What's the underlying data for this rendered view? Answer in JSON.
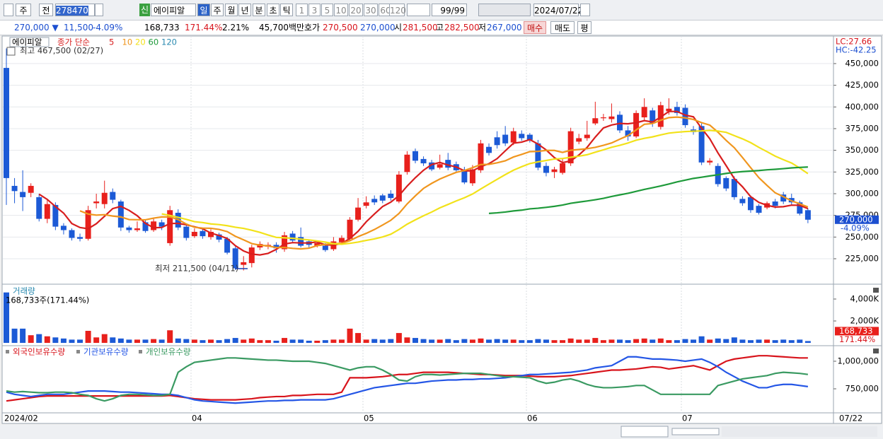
{
  "toolbar": {
    "period": "주",
    "prev": "전",
    "code": "278470",
    "credit": "신",
    "name": "에이피알",
    "intervals": [
      "일",
      "주",
      "월",
      "년",
      "분",
      "초",
      "틱"
    ],
    "counts": [
      "1",
      "3",
      "5",
      "10",
      "20",
      "30",
      "60",
      "120"
    ],
    "range": "99/99",
    "date": "2024/07/22"
  },
  "quote": {
    "price": "270,000 ▼",
    "change": "11,500",
    "change_pct": "-4.09%",
    "volume": "168,733",
    "volume_ratio": "171.44%",
    "turnover": "2.21%",
    "amount": "45,700백만",
    "ask_label": "호가",
    "ask": "270,500",
    "bid": "270,000",
    "open_label": "시",
    "open": "281,500",
    "high_label": "고",
    "high": "282,500",
    "low_label": "저",
    "low": "267,000",
    "buy": "매수",
    "sell": "매도",
    "eval": "평"
  },
  "x_axis": {
    "labels": [
      "2024/02",
      "04",
      "05",
      "06",
      "07"
    ],
    "last": "07/22"
  },
  "chart_data": [
    {
      "type": "candlestick",
      "name": "에이피알",
      "ma_label": "종가 단순",
      "ma": [
        {
          "name": "5",
          "color": "#d81e1e"
        },
        {
          "name": "10",
          "color": "#f0961e"
        },
        {
          "name": "20",
          "color": "#f2e21a"
        },
        {
          "name": "60",
          "color": "#1e9a3a"
        },
        {
          "name": "120",
          "color": "#2a8ab0"
        }
      ],
      "high_note": "최고 467,500 (02/27)",
      "low_note": "최저 211,500 (04/11)",
      "lc": "LC:27.66",
      "hc": "HC:-42.25",
      "current": "270,000",
      "current_pct": "-4.09%",
      "up_color": "#e8201c",
      "down_color": "#1c5ad6",
      "open": [
        445000,
        309000,
        302000,
        301000,
        296000,
        271000,
        287000,
        263000,
        258000,
        250000,
        248000,
        289000,
        288000,
        302000,
        291000,
        261000,
        258000,
        267000,
        258000,
        267000,
        243000,
        278000,
        262000,
        251000,
        257000,
        250000,
        253000,
        248000,
        237000,
        218000,
        220000,
        238000,
        239000,
        241000,
        236000,
        254000,
        250000,
        245000,
        240000,
        240000,
        236000,
        244000,
        248000,
        270000,
        286000,
        294000,
        298000,
        300000,
        291000,
        325000,
        349000,
        340000,
        336000,
        330000,
        339000,
        334000,
        328000,
        312000,
        327000,
        354000,
        365000,
        368000,
        359000,
        369000,
        368000,
        358000,
        332000,
        325000,
        324000,
        335000,
        360000,
        364000,
        381000,
        387000,
        386000,
        391000,
        373000,
        366000,
        388000,
        396000,
        377000,
        395000,
        400000,
        399000,
        374000,
        378000,
        336000,
        332000,
        318000,
        317000,
        294000,
        296000,
        286000,
        284000,
        291000,
        299000,
        295000,
        290000,
        281000
      ],
      "high": [
        467500,
        318000,
        327000,
        312000,
        300000,
        293000,
        290000,
        266000,
        260000,
        254000,
        286000,
        300000,
        315000,
        306000,
        293000,
        263000,
        268000,
        270000,
        272000,
        270000,
        286000,
        282000,
        265000,
        260000,
        260000,
        259000,
        255000,
        250000,
        239000,
        228000,
        241000,
        245000,
        244000,
        244000,
        256000,
        257000,
        261000,
        247000,
        246000,
        243000,
        250000,
        252000,
        273000,
        295000,
        297000,
        298000,
        300000,
        304000,
        326000,
        349000,
        352000,
        343000,
        339000,
        345000,
        347000,
        337000,
        331000,
        333000,
        362000,
        358000,
        372000,
        378000,
        376000,
        373000,
        370000,
        362000,
        336000,
        331000,
        341000,
        376000,
        369000,
        384000,
        406000,
        392000,
        404000,
        395000,
        378000,
        396000,
        410000,
        399000,
        406000,
        410000,
        406000,
        403000,
        378000,
        381000,
        341000,
        335000,
        320000,
        320000,
        297000,
        298000,
        288000,
        291000,
        294000,
        302000,
        300000,
        292000,
        283000
      ],
      "low": [
        287000,
        289000,
        280000,
        296000,
        268000,
        266000,
        258000,
        253000,
        246000,
        245000,
        246000,
        283000,
        283000,
        289000,
        257000,
        255000,
        256000,
        255000,
        256000,
        258000,
        240000,
        258000,
        246000,
        249000,
        248000,
        247000,
        244000,
        230000,
        212000,
        211500,
        215000,
        235000,
        236000,
        232000,
        233000,
        243000,
        238000,
        238000,
        238000,
        233000,
        234000,
        242000,
        246000,
        268000,
        283000,
        287000,
        289000,
        292000,
        289000,
        322000,
        335000,
        332000,
        326000,
        328000,
        327000,
        325000,
        311000,
        309000,
        324000,
        344000,
        352000,
        355000,
        356000,
        361000,
        359000,
        327000,
        320000,
        318000,
        322000,
        332000,
        357000,
        361000,
        379000,
        384000,
        382000,
        370000,
        361000,
        364000,
        385000,
        377000,
        374000,
        391000,
        390000,
        376000,
        368000,
        333000,
        333000,
        308000,
        303000,
        293000,
        286000,
        278000,
        276000,
        282000,
        283000,
        288000,
        287000,
        275000,
        266000
      ],
      "close": [
        318000,
        303000,
        296000,
        309000,
        271000,
        288000,
        262000,
        258000,
        249000,
        248000,
        281000,
        291000,
        301000,
        293000,
        261000,
        258000,
        260000,
        257000,
        268000,
        262000,
        281000,
        261000,
        249000,
        256000,
        251000,
        256000,
        247000,
        232000,
        214000,
        221000,
        238000,
        242000,
        241000,
        237000,
        252000,
        246000,
        240000,
        241000,
        243000,
        235000,
        245000,
        249000,
        270000,
        284000,
        290000,
        290000,
        292000,
        295000,
        322000,
        345000,
        338000,
        335000,
        328000,
        334000,
        330000,
        327000,
        313000,
        328000,
        358000,
        347000,
        356000,
        358000,
        372000,
        364000,
        362000,
        330000,
        324000,
        328000,
        335000,
        372000,
        364000,
        368000,
        387000,
        388000,
        389000,
        373000,
        366000,
        393000,
        400000,
        381000,
        402000,
        398000,
        393000,
        379000,
        371000,
        336000,
        338000,
        311000,
        306000,
        296000,
        289000,
        281000,
        278000,
        289000,
        286000,
        291000,
        290000,
        277000,
        270000
      ],
      "ylim": [
        197300,
        480100
      ],
      "yticks": [
        {
          "value": 225000,
          "label": "225,000"
        },
        {
          "value": 250000,
          "label": "250,000"
        },
        {
          "value": 275000,
          "label": "275,000"
        },
        {
          "value": 300000,
          "label": "300,000"
        },
        {
          "value": 325000,
          "label": "325,000"
        },
        {
          "value": 350000,
          "label": "350,000"
        },
        {
          "value": 375000,
          "label": "375,000"
        },
        {
          "value": 400000,
          "label": "400,000"
        },
        {
          "value": 425000,
          "label": "425,000"
        },
        {
          "value": 450000,
          "label": "450,000"
        }
      ]
    },
    {
      "type": "bar",
      "title": "거래량",
      "note": "168,733주(171.44%)",
      "current": "168,733",
      "current_ratio": "171.44%",
      "values": [
        4600,
        1300,
        1300,
        700,
        800,
        600,
        500,
        400,
        300,
        300,
        1100,
        500,
        800,
        500,
        400,
        300,
        300,
        300,
        350,
        300,
        1150,
        400,
        350,
        300,
        250,
        300,
        250,
        350,
        450,
        300,
        400,
        250,
        250,
        200,
        450,
        300,
        300,
        200,
        200,
        250,
        300,
        300,
        1300,
        900,
        300,
        350,
        300,
        350,
        900,
        500,
        450,
        350,
        300,
        300,
        350,
        250,
        350,
        300,
        400,
        300,
        350,
        300,
        300,
        250,
        250,
        350,
        300,
        250,
        250,
        400,
        300,
        300,
        450,
        250,
        300,
        300,
        250,
        350,
        400,
        300,
        400,
        250,
        250,
        350,
        300,
        600,
        300,
        400,
        350,
        500,
        300,
        250,
        300,
        300,
        250,
        300,
        250,
        300,
        168.733
      ],
      "ylim": [
        -190,
        5160
      ],
      "yticks": [
        {
          "value": 2000,
          "label": "2,000K"
        },
        {
          "value": 4000,
          "label": "4,000K"
        }
      ]
    },
    {
      "type": "line",
      "series": [
        {
          "name": "외국인보유수량",
          "color": "#d8141c",
          "values": [
            640000,
            650000,
            660000,
            670000,
            680000,
            685000,
            685000,
            685000,
            685000,
            685000,
            685000,
            685000,
            685000,
            685000,
            685000,
            685000,
            685000,
            685000,
            685000,
            685000,
            690000,
            680000,
            670000,
            660000,
            655000,
            650000,
            650000,
            650000,
            650000,
            655000,
            660000,
            670000,
            675000,
            680000,
            680000,
            690000,
            690000,
            695000,
            700000,
            700000,
            700000,
            720000,
            850000,
            850000,
            850000,
            855000,
            860000,
            870000,
            880000,
            880000,
            890000,
            900000,
            900000,
            900000,
            900000,
            895000,
            890000,
            885000,
            880000,
            880000,
            875000,
            870000,
            870000,
            870000,
            865000,
            860000,
            860000,
            860000,
            865000,
            870000,
            880000,
            890000,
            900000,
            910000,
            920000,
            920000,
            925000,
            930000,
            940000,
            950000,
            945000,
            930000,
            940000,
            950000,
            960000,
            940000,
            920000,
            960000,
            1000000,
            1020000,
            1030000,
            1040000,
            1050000,
            1050000,
            1045000,
            1040000,
            1035000,
            1030000,
            1030000
          ]
        },
        {
          "name": "기관보유수량",
          "color": "#2456e6",
          "values": [
            720000,
            700000,
            690000,
            680000,
            690000,
            700000,
            700000,
            700000,
            710000,
            720000,
            730000,
            730000,
            730000,
            725000,
            720000,
            720000,
            715000,
            710000,
            705000,
            700000,
            700000,
            690000,
            670000,
            650000,
            640000,
            635000,
            630000,
            625000,
            620000,
            625000,
            630000,
            635000,
            640000,
            640000,
            645000,
            645000,
            650000,
            650000,
            650000,
            650000,
            660000,
            680000,
            700000,
            720000,
            740000,
            760000,
            770000,
            780000,
            790000,
            800000,
            800000,
            810000,
            820000,
            825000,
            830000,
            830000,
            835000,
            835000,
            840000,
            840000,
            845000,
            850000,
            860000,
            870000,
            880000,
            880000,
            885000,
            890000,
            895000,
            900000,
            910000,
            920000,
            940000,
            950000,
            960000,
            1000000,
            1040000,
            1040000,
            1030000,
            1020000,
            1020000,
            1015000,
            1010000,
            1000000,
            1010000,
            1020000,
            990000,
            950000,
            900000,
            860000,
            820000,
            790000,
            760000,
            760000,
            780000,
            790000,
            790000,
            780000,
            770000
          ]
        },
        {
          "name": "개인보유수량",
          "color": "#3a9a62",
          "values": [
            730000,
            720000,
            725000,
            720000,
            715000,
            715000,
            720000,
            720000,
            715000,
            700000,
            690000,
            660000,
            640000,
            660000,
            690000,
            700000,
            700000,
            695000,
            690000,
            690000,
            700000,
            900000,
            950000,
            990000,
            1000000,
            1010000,
            1020000,
            1030000,
            1030000,
            1025000,
            1020000,
            1015000,
            1010000,
            1010000,
            1005000,
            1000000,
            1000000,
            1000000,
            990000,
            980000,
            960000,
            940000,
            920000,
            940000,
            950000,
            950000,
            920000,
            880000,
            830000,
            820000,
            860000,
            880000,
            880000,
            875000,
            880000,
            885000,
            890000,
            890000,
            890000,
            880000,
            870000,
            860000,
            860000,
            855000,
            850000,
            820000,
            800000,
            810000,
            830000,
            840000,
            820000,
            790000,
            770000,
            760000,
            760000,
            765000,
            770000,
            780000,
            780000,
            740000,
            700000,
            700000,
            700000,
            700000,
            700000,
            700000,
            700000,
            780000,
            800000,
            820000,
            840000,
            850000,
            860000,
            870000,
            890000,
            900000,
            895000,
            890000,
            880000
          ]
        }
      ],
      "ylim": [
        538500,
        1134600
      ],
      "yticks": [
        {
          "value": 750000,
          "label": "750,000"
        },
        {
          "value": 1000000,
          "label": "1,000,000"
        }
      ]
    }
  ]
}
